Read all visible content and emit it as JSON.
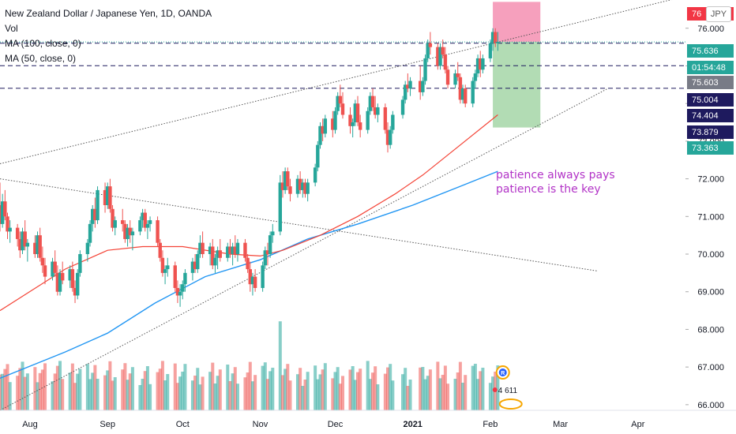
{
  "header": {
    "title": "New Zealand Dollar / Japanese Yen, 1D, OANDA",
    "vol_label": "Vol",
    "ma100_label": "MA (100, close, 0)",
    "ma50_label": "MA (50, close, 0)",
    "currency_button": "JPY"
  },
  "annotations": [
    "patience always pays",
    "patience is the key"
  ],
  "price_labels": [
    {
      "text": "76",
      "color": "#f23645"
    },
    {
      "text": "75.636",
      "color": "#26a69a"
    },
    {
      "text": "01:54:48",
      "color": "#26a69a"
    },
    {
      "text": "75.603",
      "color": "#787b86"
    },
    {
      "text": "75.004",
      "color": "#1e1a5e"
    },
    {
      "text": "74.404",
      "color": "#1e1a5e"
    },
    {
      "text": "73.879",
      "color": "#1e1a5e"
    },
    {
      "text": "73.363",
      "color": "#26a69a"
    }
  ],
  "bubble": {
    "letter": "R",
    "count": "4 611"
  },
  "colors": {
    "up": "#26a69a",
    "down": "#ef5350",
    "ma50": "#f44336",
    "ma100": "#2196f3",
    "hline": "#1e1a5e",
    "stop_zone": "#f48fb1",
    "target_zone": "#a5d6a7",
    "annotation": "#b233c7"
  },
  "chart_data": {
    "type": "candlestick",
    "title": "New Zealand Dollar / Japanese Yen, 1D, OANDA",
    "y_ticks": [
      66,
      67,
      68,
      69,
      70,
      71,
      72,
      73,
      74,
      75,
      76
    ],
    "y_tick_labels": [
      "66.000",
      "67.000",
      "68.000",
      "69.000",
      "70.000",
      "71.000",
      "72.000",
      "73.000",
      "74.000",
      "75.000",
      "76.000"
    ],
    "ylim": [
      65.85,
      76.75
    ],
    "x_range": [
      "2020-07-20",
      "2021-04-20"
    ],
    "x_ticks": [
      {
        "date": "2020-08-01",
        "label": "Aug"
      },
      {
        "date": "2020-09-01",
        "label": "Sep"
      },
      {
        "date": "2020-10-01",
        "label": "Oct"
      },
      {
        "date": "2020-11-01",
        "label": "Nov"
      },
      {
        "date": "2020-12-01",
        "label": "Dec"
      },
      {
        "date": "2021-01-01",
        "label": "2021"
      },
      {
        "date": "2021-02-01",
        "label": "Feb"
      },
      {
        "date": "2021-03-01",
        "label": "Mar"
      },
      {
        "date": "2021-04-01",
        "label": "Apr"
      }
    ],
    "horizontal_levels": [
      75.603,
      75.004,
      74.404
    ],
    "last_price": 75.636,
    "position": {
      "entry": 75.636,
      "stop": 76.7,
      "target": 73.363,
      "start": "2021-02-02",
      "end": "2021-02-21"
    },
    "trendlines": [
      {
        "from": [
          "2020-07-20",
          72.4
        ],
        "to": [
          "2021-04-20",
          76.85
        ]
      },
      {
        "from": [
          "2020-07-20",
          72.0
        ],
        "to": [
          "2021-03-16",
          69.55
        ]
      },
      {
        "from": [
          "2020-07-20",
          65.85
        ],
        "to": [
          "2021-03-20",
          74.4
        ]
      }
    ],
    "ohlc_daily": [
      [
        "2020-07-20",
        71.3,
        71.9,
        70.6,
        70.8
      ],
      [
        "2020-07-21",
        70.8,
        71.6,
        70.7,
        71.4
      ],
      [
        "2020-07-22",
        71.4,
        71.7,
        70.9,
        71.0
      ],
      [
        "2020-07-23",
        71.0,
        71.1,
        70.4,
        70.6
      ],
      [
        "2020-07-24",
        70.6,
        70.9,
        70.3,
        70.7
      ],
      [
        "2020-07-27",
        70.7,
        70.8,
        70.2,
        70.4
      ],
      [
        "2020-07-28",
        70.4,
        70.6,
        69.9,
        70.1
      ],
      [
        "2020-07-29",
        70.1,
        70.7,
        70.0,
        70.6
      ],
      [
        "2020-07-30",
        70.6,
        70.9,
        70.1,
        70.2
      ],
      [
        "2020-07-31",
        70.2,
        70.4,
        69.8,
        70.3
      ],
      [
        "2020-08-03",
        70.3,
        70.5,
        69.9,
        70.0
      ],
      [
        "2020-08-04",
        70.0,
        70.6,
        69.9,
        70.5
      ],
      [
        "2020-08-05",
        70.5,
        70.7,
        69.8,
        69.9
      ],
      [
        "2020-08-06",
        69.9,
        70.2,
        69.5,
        69.7
      ],
      [
        "2020-08-07",
        69.7,
        69.9,
        69.2,
        69.4
      ],
      [
        "2020-08-10",
        69.4,
        69.9,
        69.3,
        69.8
      ],
      [
        "2020-08-11",
        69.8,
        70.1,
        69.4,
        69.5
      ],
      [
        "2020-08-12",
        69.5,
        69.7,
        68.9,
        69.0
      ],
      [
        "2020-08-13",
        69.0,
        69.6,
        68.9,
        69.5
      ],
      [
        "2020-08-14",
        69.5,
        69.8,
        69.2,
        69.3
      ],
      [
        "2020-08-17",
        69.3,
        69.7,
        69.1,
        69.6
      ],
      [
        "2020-08-18",
        69.6,
        69.8,
        69.0,
        69.1
      ],
      [
        "2020-08-19",
        69.1,
        69.3,
        68.7,
        68.9
      ],
      [
        "2020-08-20",
        68.9,
        69.6,
        68.8,
        69.5
      ],
      [
        "2020-08-21",
        69.5,
        70.1,
        69.4,
        70.0
      ],
      [
        "2020-08-24",
        70.0,
        70.4,
        69.8,
        70.3
      ],
      [
        "2020-08-25",
        70.3,
        70.9,
        70.2,
        70.8
      ],
      [
        "2020-08-26",
        70.8,
        71.3,
        70.6,
        71.2
      ],
      [
        "2020-08-27",
        71.2,
        71.5,
        70.7,
        70.9
      ],
      [
        "2020-08-28",
        70.9,
        71.8,
        70.8,
        71.7
      ],
      [
        "2020-08-31",
        71.7,
        71.9,
        71.1,
        71.3
      ],
      [
        "2020-09-01",
        71.3,
        71.9,
        71.2,
        71.8
      ],
      [
        "2020-09-02",
        71.8,
        72.0,
        71.1,
        71.2
      ],
      [
        "2020-09-03",
        71.2,
        71.3,
        70.6,
        70.7
      ],
      [
        "2020-09-04",
        70.7,
        71.0,
        70.5,
        70.9
      ],
      [
        "2020-09-07",
        70.9,
        71.2,
        70.6,
        70.8
      ],
      [
        "2020-09-08",
        70.8,
        70.9,
        70.3,
        70.4
      ],
      [
        "2020-09-09",
        70.4,
        70.8,
        70.2,
        70.7
      ],
      [
        "2020-09-10",
        70.7,
        70.9,
        70.3,
        70.5
      ],
      [
        "2020-09-11",
        70.5,
        70.7,
        70.1,
        70.6
      ],
      [
        "2020-09-14",
        70.6,
        71.0,
        70.5,
        70.9
      ],
      [
        "2020-09-15",
        70.9,
        71.2,
        70.7,
        71.1
      ],
      [
        "2020-09-16",
        71.1,
        71.2,
        70.6,
        70.7
      ],
      [
        "2020-09-17",
        70.7,
        70.9,
        70.4,
        70.8
      ],
      [
        "2020-09-18",
        70.8,
        71.0,
        70.6,
        70.9
      ],
      [
        "2020-09-21",
        70.9,
        71.0,
        70.2,
        70.3
      ],
      [
        "2020-09-22",
        70.3,
        70.4,
        69.8,
        69.9
      ],
      [
        "2020-09-23",
        69.9,
        70.1,
        69.4,
        69.5
      ],
      [
        "2020-09-24",
        69.5,
        69.7,
        69.2,
        69.6
      ],
      [
        "2020-09-25",
        69.6,
        69.9,
        69.4,
        69.7
      ],
      [
        "2020-09-28",
        69.7,
        69.8,
        69.0,
        69.1
      ],
      [
        "2020-09-29",
        69.1,
        69.3,
        68.7,
        68.9
      ],
      [
        "2020-09-30",
        68.9,
        69.2,
        68.6,
        69.0
      ],
      [
        "2020-10-01",
        69.0,
        69.3,
        68.8,
        69.2
      ],
      [
        "2020-10-02",
        69.2,
        69.6,
        69.0,
        69.5
      ],
      [
        "2020-10-05",
        69.5,
        69.9,
        69.3,
        69.8
      ],
      [
        "2020-10-06",
        69.8,
        70.0,
        69.5,
        69.6
      ],
      [
        "2020-10-07",
        69.6,
        70.1,
        69.5,
        70.0
      ],
      [
        "2020-10-08",
        70.0,
        70.5,
        69.9,
        70.3
      ],
      [
        "2020-10-09",
        70.3,
        70.6,
        69.9,
        70.0
      ],
      [
        "2020-10-12",
        70.0,
        70.3,
        69.7,
        70.2
      ],
      [
        "2020-10-13",
        70.2,
        70.4,
        69.6,
        69.7
      ],
      [
        "2020-10-14",
        69.7,
        70.0,
        69.5,
        69.9
      ],
      [
        "2020-10-15",
        69.9,
        70.2,
        69.6,
        70.1
      ],
      [
        "2020-10-16",
        70.1,
        70.4,
        69.8,
        69.9
      ],
      [
        "2020-10-19",
        69.9,
        70.3,
        69.8,
        70.2
      ],
      [
        "2020-10-20",
        70.2,
        70.4,
        69.9,
        70.0
      ],
      [
        "2020-10-21",
        70.0,
        70.3,
        69.7,
        70.2
      ],
      [
        "2020-10-22",
        70.2,
        70.5,
        69.9,
        70.0
      ],
      [
        "2020-10-23",
        70.0,
        70.4,
        69.8,
        70.3
      ],
      [
        "2020-10-26",
        70.3,
        70.4,
        69.8,
        69.9
      ],
      [
        "2020-10-27",
        69.9,
        70.0,
        69.5,
        69.6
      ],
      [
        "2020-10-28",
        69.6,
        69.8,
        69.0,
        69.2
      ],
      [
        "2020-10-29",
        69.2,
        69.5,
        68.9,
        69.4
      ],
      [
        "2020-10-30",
        69.4,
        69.6,
        69.0,
        69.1
      ],
      [
        "2020-11-02",
        69.1,
        69.8,
        69.0,
        69.7
      ],
      [
        "2020-11-03",
        69.7,
        70.2,
        69.6,
        70.1
      ],
      [
        "2020-11-04",
        70.1,
        70.3,
        69.7,
        70.0
      ],
      [
        "2020-11-05",
        70.0,
        70.6,
        69.9,
        70.5
      ],
      [
        "2020-11-06",
        70.5,
        70.8,
        70.3,
        70.6
      ],
      [
        "2020-11-09",
        70.6,
        72.1,
        70.5,
        71.9
      ],
      [
        "2020-11-10",
        71.9,
        72.2,
        71.5,
        71.7
      ],
      [
        "2020-11-11",
        71.7,
        72.3,
        71.6,
        72.2
      ],
      [
        "2020-11-12",
        72.2,
        72.3,
        71.7,
        71.8
      ],
      [
        "2020-11-13",
        71.8,
        72.0,
        71.4,
        71.6
      ],
      [
        "2020-11-16",
        71.6,
        72.1,
        71.5,
        72.0
      ],
      [
        "2020-11-17",
        72.0,
        72.2,
        71.6,
        71.7
      ],
      [
        "2020-11-18",
        71.7,
        72.0,
        71.5,
        71.9
      ],
      [
        "2020-11-19",
        71.9,
        72.0,
        71.5,
        71.6
      ],
      [
        "2020-11-20",
        71.6,
        72.0,
        71.4,
        71.9
      ],
      [
        "2020-11-23",
        71.9,
        72.4,
        71.8,
        72.3
      ],
      [
        "2020-11-24",
        72.3,
        73.0,
        72.2,
        72.9
      ],
      [
        "2020-11-25",
        72.9,
        73.5,
        72.8,
        73.4
      ],
      [
        "2020-11-26",
        73.4,
        73.6,
        73.0,
        73.2
      ],
      [
        "2020-11-27",
        73.2,
        73.7,
        73.1,
        73.6
      ],
      [
        "2020-11-30",
        73.6,
        73.8,
        73.1,
        73.3
      ],
      [
        "2020-12-01",
        73.3,
        73.9,
        73.2,
        73.8
      ],
      [
        "2020-12-02",
        73.8,
        74.3,
        73.7,
        74.2
      ],
      [
        "2020-12-03",
        74.2,
        74.5,
        73.9,
        74.0
      ],
      [
        "2020-12-04",
        74.0,
        74.3,
        73.6,
        73.7
      ],
      [
        "2020-12-07",
        73.7,
        73.9,
        73.2,
        73.4
      ],
      [
        "2020-12-08",
        73.4,
        73.6,
        73.1,
        73.5
      ],
      [
        "2020-12-09",
        73.5,
        74.1,
        73.4,
        74.0
      ],
      [
        "2020-12-10",
        74.0,
        74.2,
        73.4,
        73.5
      ],
      [
        "2020-12-11",
        73.5,
        73.7,
        73.1,
        73.3
      ],
      [
        "2020-12-14",
        73.3,
        73.9,
        73.2,
        73.8
      ],
      [
        "2020-12-15",
        73.8,
        74.3,
        73.7,
        74.2
      ],
      [
        "2020-12-16",
        74.2,
        74.4,
        73.8,
        73.9
      ],
      [
        "2020-12-17",
        73.9,
        74.2,
        73.6,
        73.7
      ],
      [
        "2020-12-18",
        73.7,
        74.0,
        73.5,
        73.9
      ],
      [
        "2020-12-21",
        73.9,
        74.0,
        73.2,
        73.3
      ],
      [
        "2020-12-22",
        73.3,
        73.5,
        72.7,
        72.9
      ],
      [
        "2020-12-23",
        72.9,
        73.4,
        72.8,
        73.3
      ],
      [
        "2020-12-24",
        73.3,
        73.8,
        73.2,
        73.7
      ],
      [
        "2020-12-28",
        73.7,
        74.2,
        73.6,
        74.1
      ],
      [
        "2020-12-29",
        74.1,
        74.6,
        74.0,
        74.5
      ],
      [
        "2020-12-30",
        74.5,
        74.8,
        74.3,
        74.4
      ],
      [
        "2020-12-31",
        74.4,
        74.7,
        74.2,
        74.6
      ],
      [
        "2021-01-04",
        74.6,
        75.0,
        74.1,
        74.3
      ],
      [
        "2021-01-05",
        74.3,
        74.7,
        74.2,
        74.6
      ],
      [
        "2021-01-06",
        74.6,
        75.3,
        74.5,
        75.2
      ],
      [
        "2021-01-07",
        75.2,
        75.7,
        75.1,
        75.6
      ],
      [
        "2021-01-08",
        75.6,
        75.9,
        75.3,
        75.5
      ],
      [
        "2021-01-11",
        75.5,
        75.6,
        74.9,
        75.0
      ],
      [
        "2021-01-12",
        75.0,
        75.6,
        74.9,
        75.5
      ],
      [
        "2021-01-13",
        75.5,
        75.7,
        75.2,
        75.3
      ],
      [
        "2021-01-14",
        75.3,
        75.5,
        74.8,
        74.9
      ],
      [
        "2021-01-15",
        74.9,
        75.0,
        74.4,
        74.5
      ],
      [
        "2021-01-18",
        74.5,
        74.9,
        74.4,
        74.8
      ],
      [
        "2021-01-19",
        74.8,
        75.1,
        74.6,
        74.7
      ],
      [
        "2021-01-20",
        74.7,
        74.8,
        74.0,
        74.1
      ],
      [
        "2021-01-21",
        74.1,
        74.5,
        74.0,
        74.4
      ],
      [
        "2021-01-22",
        74.4,
        74.5,
        73.9,
        74.0
      ],
      [
        "2021-01-25",
        74.0,
        74.7,
        73.9,
        74.6
      ],
      [
        "2021-01-26",
        74.6,
        74.9,
        74.4,
        74.8
      ],
      [
        "2021-01-27",
        74.8,
        75.3,
        74.7,
        75.2
      ],
      [
        "2021-01-28",
        75.2,
        75.4,
        74.7,
        74.9
      ],
      [
        "2021-01-29",
        74.9,
        75.3,
        74.8,
        75.2
      ],
      [
        "2021-02-01",
        75.2,
        75.7,
        75.1,
        75.6
      ],
      [
        "2021-02-02",
        75.6,
        76.0,
        75.4,
        75.9
      ],
      [
        "2021-02-03",
        75.9,
        76.0,
        75.5,
        75.6
      ],
      [
        "2021-02-04",
        75.6,
        75.9,
        75.4,
        75.636
      ]
    ],
    "ma50": [
      [
        "2020-07-20",
        68.5
      ],
      [
        "2020-08-15",
        69.6
      ],
      [
        "2020-09-01",
        70.1
      ],
      [
        "2020-09-15",
        70.2
      ],
      [
        "2020-10-01",
        70.2
      ],
      [
        "2020-10-20",
        70.0
      ],
      [
        "2020-11-01",
        69.95
      ],
      [
        "2020-11-10",
        70.1
      ],
      [
        "2020-11-25",
        70.5
      ],
      [
        "2020-12-10",
        71.0
      ],
      [
        "2020-12-25",
        71.6
      ],
      [
        "2021-01-05",
        72.1
      ],
      [
        "2021-01-20",
        72.9
      ],
      [
        "2021-02-04",
        73.7
      ]
    ],
    "ma100": [
      [
        "2020-07-20",
        66.7
      ],
      [
        "2020-08-15",
        67.4
      ],
      [
        "2020-09-01",
        67.9
      ],
      [
        "2020-09-20",
        68.7
      ],
      [
        "2020-10-10",
        69.4
      ],
      [
        "2020-11-01",
        69.85
      ],
      [
        "2020-11-20",
        70.4
      ],
      [
        "2020-12-10",
        70.8
      ],
      [
        "2021-01-01",
        71.3
      ],
      [
        "2021-01-20",
        71.8
      ],
      [
        "2021-02-04",
        72.2
      ]
    ],
    "volume_note": "relative daily volume heights, not scaled to an axis"
  }
}
